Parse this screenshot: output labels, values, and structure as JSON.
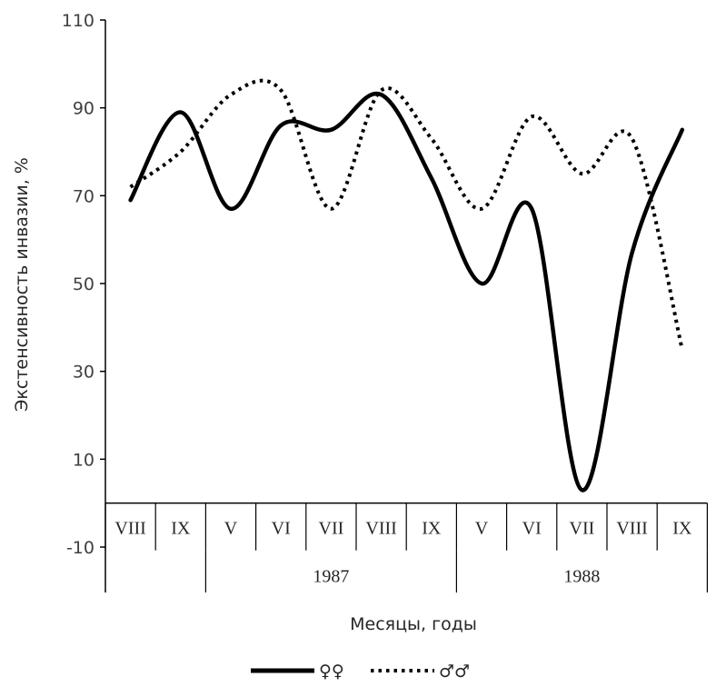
{
  "chart_data": {
    "type": "line",
    "title": "",
    "ylabel": "Экстенсивность инвазии, %",
    "xlabel": "Месяцы, годы",
    "ylim": [
      -10,
      110
    ],
    "yticks": [
      -10,
      10,
      30,
      50,
      70,
      90,
      110
    ],
    "categories": [
      "VIII",
      "IX",
      "V",
      "VI",
      "VII",
      "VIII",
      "IX",
      "V",
      "VI",
      "VII",
      "VIII",
      "IX"
    ],
    "year_groups": [
      {
        "label": "",
        "count": 2
      },
      {
        "label": "1987",
        "count": 5
      },
      {
        "label": "1988",
        "count": 5
      }
    ],
    "series": [
      {
        "name": "♀♀",
        "style": "solid",
        "color": "#000000",
        "values": [
          69,
          89,
          67,
          86,
          85,
          93,
          74,
          50,
          67,
          3,
          57,
          85
        ]
      },
      {
        "name": "♂♂",
        "style": "dotted",
        "color": "#000000",
        "values": [
          72,
          80,
          93,
          94,
          67,
          94,
          83,
          67,
          88,
          75,
          83,
          35
        ]
      }
    ],
    "grid": false,
    "legend_position": "bottom"
  }
}
